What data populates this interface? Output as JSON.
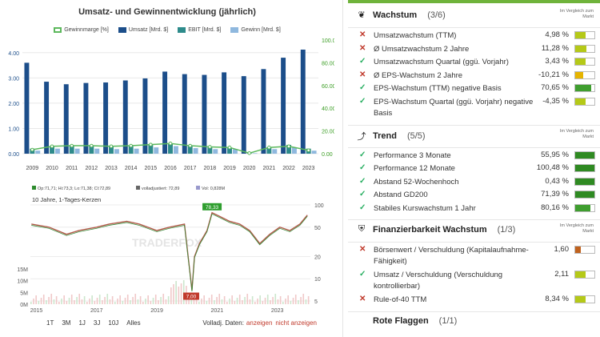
{
  "left": {
    "chart1": {
      "title": "Umsatz- und Gewinnentwicklung (jährlich)",
      "legend": [
        {
          "label": "Gewinnmarge [%]",
          "color": "#5cb85c",
          "kind": "line"
        },
        {
          "label": "Umsatz [Mrd. $]",
          "color": "#1c4e8a",
          "kind": "bar"
        },
        {
          "label": "EBIT [Mrd. $]",
          "color": "#2e8b8b",
          "kind": "bar"
        },
        {
          "label": "Gewinn [Mrd. $]",
          "color": "#8fb8de",
          "kind": "bar"
        }
      ]
    },
    "chart2": {
      "legend_top": [
        "Op:71,71; Hi:73,3; Lo:71,38; Cl:72,89",
        "volladjustiert: 72,89",
        "Vol: 0,828M"
      ],
      "subtitle": "10 Jahre, 1-Tages-Kerzen",
      "watermark": "TRADERFOX",
      "high_label": "78,33",
      "low_label": "7,00"
    },
    "range_buttons": [
      "1T",
      "3M",
      "1J",
      "3J",
      "10J",
      "Alles"
    ],
    "volume_prefix": "Volladj. Daten:",
    "volume_show": "anzeigen",
    "volume_hide": "nicht anzeigen"
  },
  "chart_data": [
    {
      "type": "bar",
      "title": "Umsatz- und Gewinnentwicklung (jährlich)",
      "categories": [
        "2009",
        "2010",
        "2011",
        "2012",
        "2013",
        "2014",
        "2015",
        "2016",
        "2017",
        "2018",
        "2019",
        "2020",
        "2021",
        "2022",
        "2023"
      ],
      "series": [
        {
          "name": "Umsatz [Mrd. $]",
          "values": [
            3.6,
            2.85,
            2.75,
            2.8,
            2.82,
            2.9,
            2.98,
            3.25,
            3.15,
            3.12,
            3.22,
            3.07,
            3.35,
            3.8,
            4.12
          ]
        },
        {
          "name": "EBIT [Mrd. $]",
          "values": [
            0.2,
            0.3,
            0.3,
            0.3,
            0.28,
            0.3,
            0.35,
            0.4,
            0.3,
            0.25,
            0.25,
            0.05,
            0.25,
            0.35,
            0.2
          ]
        },
        {
          "name": "Gewinn [Mrd. $]",
          "values": [
            0.12,
            0.2,
            0.2,
            0.2,
            0.18,
            0.2,
            0.25,
            0.3,
            0.22,
            0.18,
            0.18,
            0.02,
            0.18,
            0.25,
            0.12
          ]
        },
        {
          "name": "Gewinnmarge [%]",
          "axis": "right",
          "values": [
            3.5,
            6.5,
            7.0,
            7.0,
            6.5,
            7.0,
            8.0,
            9.0,
            7.0,
            6.0,
            5.5,
            0.5,
            5.5,
            6.5,
            3.0
          ]
        }
      ],
      "ylim": [
        0,
        4.5
      ],
      "yticks": [
        "0.00",
        "1.00",
        "2.00",
        "3.00",
        "4.00"
      ],
      "y2lim": [
        0,
        100
      ],
      "y2ticks": [
        "0.00",
        "20.00",
        "40.00",
        "60.00",
        "80.00",
        "100.00"
      ],
      "legend": "top"
    },
    {
      "type": "line",
      "subtitle": "10 Jahre, 1-Tages-Kerzen",
      "x": [
        "2014-11",
        "2015-06",
        "2016-01",
        "2016-06",
        "2017-01",
        "2017-06",
        "2018-01",
        "2018-06",
        "2019-01",
        "2019-06",
        "2019-12",
        "2020-03",
        "2020-04",
        "2020-06",
        "2020-09",
        "2020-11",
        "2021-02",
        "2021-06",
        "2021-10",
        "2022-02",
        "2022-06",
        "2022-10",
        "2023-02",
        "2023-06",
        "2023-10",
        "2024-01"
      ],
      "y": [
        55,
        50,
        40,
        45,
        50,
        55,
        60,
        55,
        45,
        50,
        55,
        7,
        20,
        30,
        45,
        78.33,
        70,
        60,
        55,
        45,
        30,
        40,
        50,
        45,
        55,
        72.89
      ],
      "xticks": [
        "2015",
        "2017",
        "2019",
        "2021",
        "2023"
      ],
      "yticks": [
        "5",
        "10",
        "20",
        "50",
        "100"
      ],
      "yscale": "log",
      "volume_ticks": [
        "0M",
        "5M",
        "10M",
        "15M"
      ]
    }
  ],
  "right": {
    "compare_label": "Im Vergleich zum Markt",
    "sections": [
      {
        "icon": "sprout-icon",
        "glyph": "❦",
        "title": "Wachstum",
        "count": "(3/6)",
        "rows": [
          {
            "status": "fail",
            "label": "Umsatzwachstum (TTM)",
            "value": "4,98 %",
            "bar_fill": 0.55,
            "bar_color": "#b5c918"
          },
          {
            "status": "fail",
            "label": "Ø Umsatzwachstum 2 Jahre",
            "value": "11,28 %",
            "bar_fill": 0.6,
            "bar_color": "#b5c918"
          },
          {
            "status": "ok",
            "label": "Umsatzwachstum Quartal (ggü. Vorjahr)",
            "value": "3,43 %",
            "bar_fill": 0.55,
            "bar_color": "#b5c918"
          },
          {
            "status": "fail",
            "label": "Ø EPS-Wachstum 2 Jahre",
            "value": "-10,21 %",
            "bar_fill": 0.4,
            "bar_color": "#e6b400"
          },
          {
            "status": "ok",
            "label": "EPS-Wachstum (TTM) negative Basis",
            "value": "70,65 %",
            "bar_fill": 0.85,
            "bar_color": "#3f9e2f"
          },
          {
            "status": "ok",
            "label": "EPS-Wachstum Quartal (ggü. Vorjahr) negative Basis",
            "value": "-4,35 %",
            "bar_fill": 0.55,
            "bar_color": "#b5c918"
          }
        ]
      },
      {
        "icon": "trend-icon",
        "glyph": "⤴",
        "title": "Trend",
        "count": "(5/5)",
        "rows": [
          {
            "status": "ok",
            "label": "Performance 3 Monate",
            "value": "55,95 %",
            "bar_fill": 1.0,
            "bar_color": "#2f8a22"
          },
          {
            "status": "ok",
            "label": "Performance 12 Monate",
            "value": "100,48 %",
            "bar_fill": 1.0,
            "bar_color": "#2f8a22"
          },
          {
            "status": "ok",
            "label": "Abstand 52-Wochenhoch",
            "value": "0,43 %",
            "bar_fill": 1.0,
            "bar_color": "#2f8a22"
          },
          {
            "status": "ok",
            "label": "Abstand GD200",
            "value": "71,39 %",
            "bar_fill": 1.0,
            "bar_color": "#2f8a22"
          },
          {
            "status": "ok",
            "label": "Stabiles Kurswachstum 1 Jahr",
            "value": "80,16 %",
            "bar_fill": 0.8,
            "bar_color": "#3f9e2f"
          }
        ]
      },
      {
        "icon": "shield-icon",
        "glyph": "⛨",
        "title": "Finanzierbarkeit Wachstum",
        "count": "(1/3)",
        "rows": [
          {
            "status": "fail",
            "label": "Börsenwert / Verschuldung (Kapitalaufnahme-Fähigkeit)",
            "value": "1,60",
            "bar_fill": 0.3,
            "bar_color": "#c0621e"
          },
          {
            "status": "ok",
            "label": "Umsatz / Verschuldung (Verschuldung kontrollierbar)",
            "value": "2,11",
            "bar_fill": 0.55,
            "bar_color": "#b5c918"
          },
          {
            "status": "fail",
            "label": "Rule-of-40 TTM",
            "value": "8,34 %",
            "bar_fill": 0.55,
            "bar_color": "#b5c918"
          }
        ]
      }
    ],
    "next_section_title": "Rote Flaggen",
    "next_section_count": "(1/1)"
  }
}
